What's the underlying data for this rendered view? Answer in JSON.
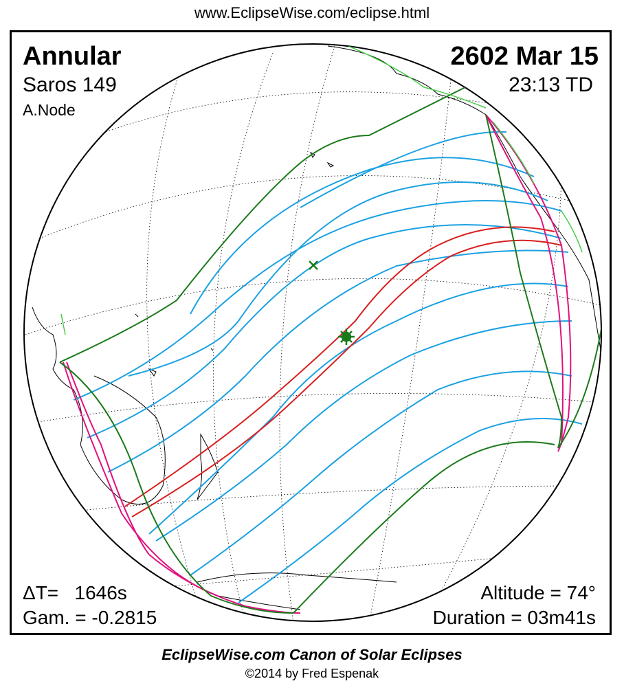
{
  "header": {
    "url": "www.EclipseWise.com/eclipse.html"
  },
  "eclipse": {
    "type": "Annular",
    "date": "2602 Mar 15",
    "saros": "Saros 149",
    "time": "23:13 TD",
    "node": "A.Node"
  },
  "stats": {
    "delta_t": "ΔT=   1646s",
    "gamma": "Gam. = -0.2815",
    "altitude": "Altitude = 74°",
    "duration": "Duration = 03m41s"
  },
  "footer": {
    "title": "EclipseWise.com Canon of Solar Eclipses",
    "copyright": "©2014 by Fred Espenak"
  },
  "map": {
    "projection": "orthographic",
    "colors": {
      "central_path": "#d81e1e",
      "penumbral_limits": "#1a7a1a",
      "magnitude_isolines": "#1ba1e2",
      "rise_set_curves": "#e0127f",
      "coastlines": "#000000",
      "graticule": "#000000",
      "limb_shadow": "#bbbbbb",
      "greatest_eclipse_marker": "#1a7a1a"
    },
    "markers": [
      {
        "name": "greatest-eclipse-star-icon"
      },
      {
        "name": "sub-solar-cross-icon"
      }
    ]
  }
}
